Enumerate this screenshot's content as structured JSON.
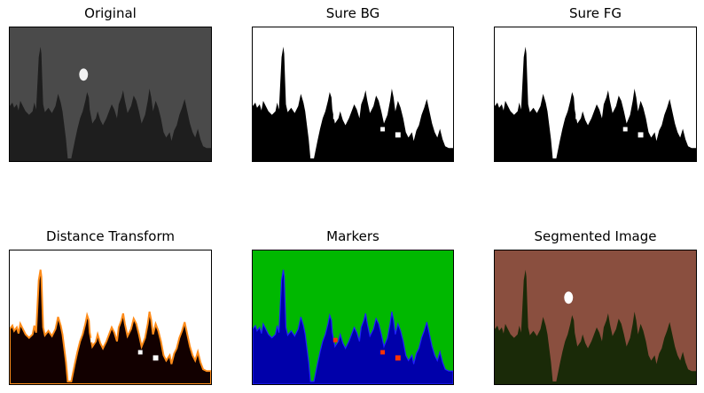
{
  "figure": {
    "panels": [
      {
        "id": "original",
        "title": "Original",
        "colors": {
          "sky": "#4a4a4a",
          "ground": "#1e1e1e",
          "moon": "#f2f2f2"
        }
      },
      {
        "id": "sure-bg",
        "title": "Sure BG",
        "colors": {
          "sky": "#ffffff",
          "ground": "#000000"
        }
      },
      {
        "id": "sure-fg",
        "title": "Sure FG",
        "colors": {
          "sky": "#ffffff",
          "ground": "#000000"
        }
      },
      {
        "id": "distance-transform",
        "title": "Distance Transform",
        "colors": {
          "sky": "#ffffff",
          "ground": "#120000",
          "edge": "#ff8c1a"
        }
      },
      {
        "id": "markers",
        "title": "Markers",
        "colors": {
          "sky": "#00b800",
          "ground": "#0000aa",
          "edge": "#ff3300"
        }
      },
      {
        "id": "segmented-image",
        "title": "Segmented Image",
        "colors": {
          "sky": "#8a4f3f",
          "ground": "#1a2a08",
          "moon": "#ffffff"
        }
      }
    ]
  }
}
